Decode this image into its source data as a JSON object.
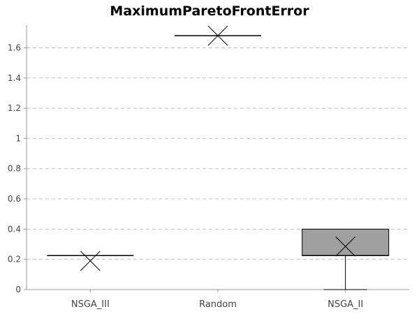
{
  "chart_data": {
    "type": "box",
    "title": "MaximumParetoFrontError",
    "xlabel": "",
    "ylabel": "",
    "ylim": [
      0,
      1.75
    ],
    "yticks": [
      0,
      0.2,
      0.4,
      0.6,
      0.8,
      1,
      1.2,
      1.4,
      1.6
    ],
    "ytick_labels": [
      "0",
      "0.2",
      "0.4",
      "0.6",
      "0.8",
      "1",
      "1.2",
      "1.4",
      "1.6"
    ],
    "grid": "horizontal dashed",
    "categories": [
      "NSGA_III",
      "Random",
      "NSGA_II"
    ],
    "boxes": [
      {
        "category": "NSGA_III",
        "whisker_low": 0.225,
        "q1": 0.225,
        "median": 0.225,
        "q3": 0.225,
        "whisker_high": 0.225,
        "mean": 0.19
      },
      {
        "category": "Random",
        "whisker_low": 1.68,
        "q1": 1.68,
        "median": 1.68,
        "q3": 1.68,
        "whisker_high": 1.68,
        "mean": 1.68
      },
      {
        "category": "NSGA_II",
        "whisker_low": 0.0,
        "q1": 0.225,
        "median": 0.225,
        "q3": 0.4,
        "whisker_high": 0.4,
        "mean": 0.285
      }
    ],
    "colors": {
      "box_fill": "#a0a0a0",
      "box_stroke": "#000000",
      "grid": "#c0c0c0",
      "axis": "#999999"
    }
  }
}
